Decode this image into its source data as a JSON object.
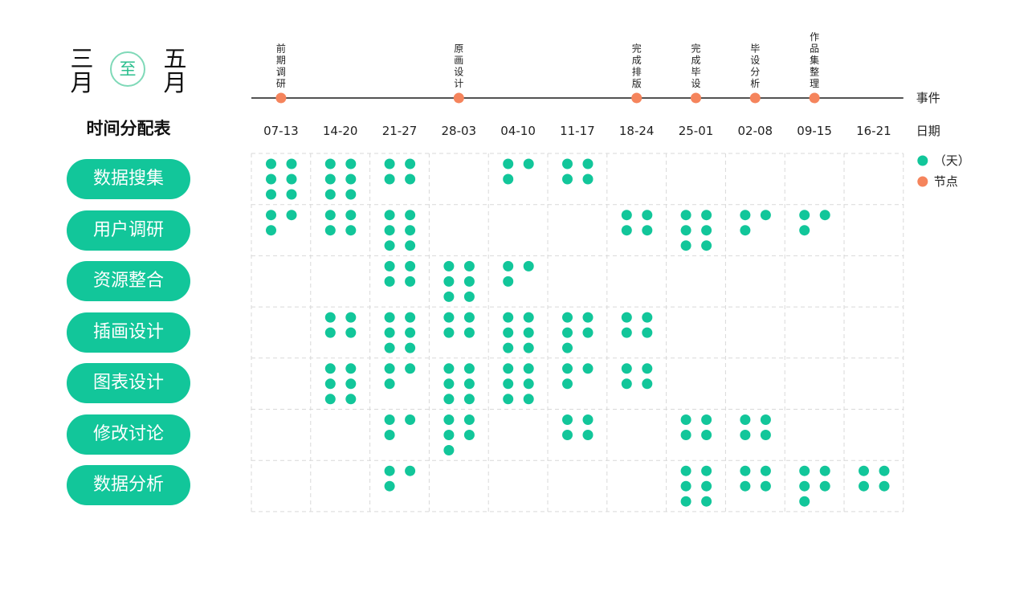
{
  "header": {
    "month_from": "三月",
    "connector": "至",
    "month_to": "五月",
    "subtitle": "时间分配表"
  },
  "colors": {
    "day": "#12c69a",
    "milestone": "#f5845c",
    "grid": "#d9d9d9",
    "axis": "#1a1a1a"
  },
  "chart_data": {
    "type": "dot-matrix",
    "event_axis_label": "事件",
    "date_axis_label": "日期",
    "weeks": [
      "07-13",
      "14-20",
      "21-27",
      "28-03",
      "04-10",
      "11-17",
      "18-24",
      "25-01",
      "02-08",
      "09-15",
      "16-21"
    ],
    "events": [
      {
        "week": "07-13",
        "label": "前期调研"
      },
      {
        "week": "28-03",
        "label": "原画设计"
      },
      {
        "week": "18-24",
        "label": "完成排版"
      },
      {
        "week": "25-01",
        "label": "完成毕设"
      },
      {
        "week": "02-08",
        "label": "毕设分析"
      },
      {
        "week": "09-15",
        "label": "作品集整理"
      }
    ],
    "tasks": [
      {
        "name": "数据搜集",
        "days": [
          6,
          6,
          4,
          0,
          3,
          4,
          0,
          0,
          0,
          0,
          0
        ]
      },
      {
        "name": "用户调研",
        "days": [
          3,
          4,
          6,
          0,
          0,
          0,
          4,
          6,
          3,
          3,
          0
        ]
      },
      {
        "name": "资源整合",
        "days": [
          0,
          0,
          4,
          6,
          3,
          0,
          0,
          0,
          0,
          0,
          0
        ]
      },
      {
        "name": "插画设计",
        "days": [
          0,
          4,
          6,
          4,
          6,
          5,
          4,
          0,
          0,
          0,
          0
        ]
      },
      {
        "name": "图表设计",
        "days": [
          0,
          6,
          3,
          6,
          6,
          3,
          4,
          0,
          0,
          0,
          0
        ]
      },
      {
        "name": "修改讨论",
        "days": [
          0,
          0,
          3,
          5,
          0,
          4,
          0,
          4,
          4,
          0,
          0
        ]
      },
      {
        "name": "数据分析",
        "days": [
          0,
          0,
          3,
          0,
          0,
          0,
          0,
          6,
          4,
          5,
          4
        ]
      }
    ],
    "legend": [
      {
        "label": "（天）",
        "color": "#12c69a"
      },
      {
        "label": "节点",
        "color": "#f5845c"
      }
    ]
  }
}
